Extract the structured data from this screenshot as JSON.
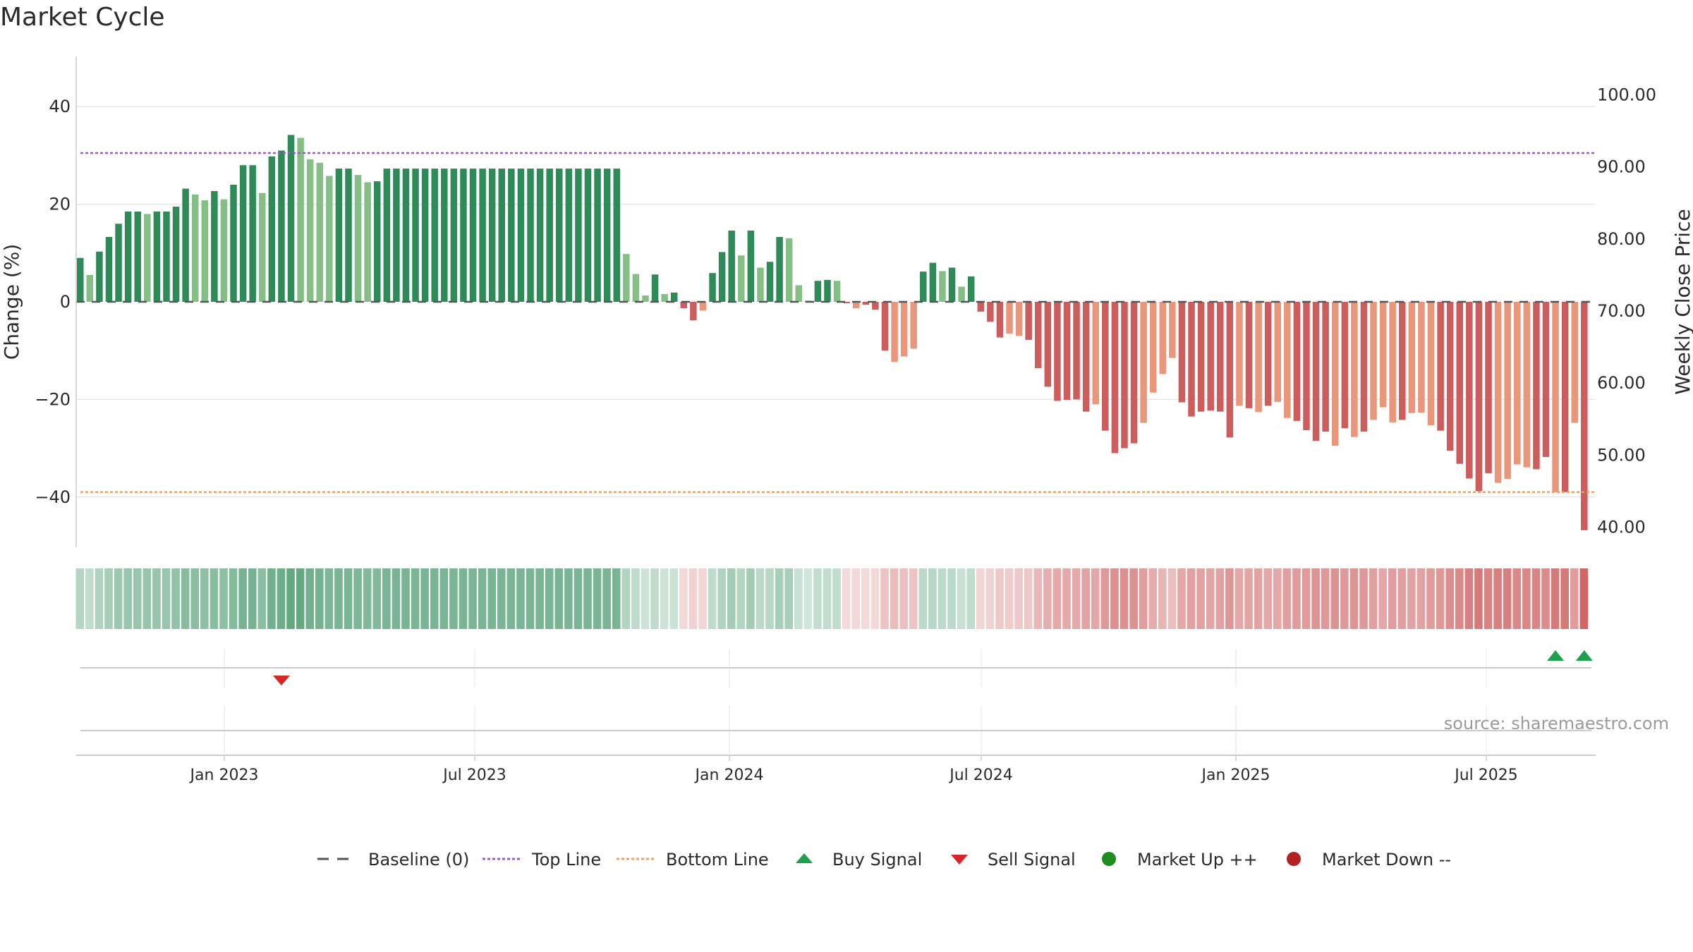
{
  "chart_data": {
    "type": "bar",
    "title": "Market Cycle",
    "ylabel": "Change (%)",
    "y2label": "Weekly Close Price",
    "ylim": [
      -50,
      50
    ],
    "y_ticks": [
      40,
      20,
      0,
      -20,
      -40
    ],
    "y_tick_labels": [
      "40",
      "20",
      "0",
      "−20",
      "−40"
    ],
    "y2lim": [
      38.5,
      108
    ],
    "y2_ticks": [
      100,
      90,
      80,
      70,
      60,
      50,
      40
    ],
    "y2_tick_labels": [
      "100.00",
      "90.00",
      "80.00",
      "70.00",
      "60.00",
      "50.00",
      "40.00"
    ],
    "top_line": 30.5,
    "bottom_line": -39,
    "x_ticks": [
      "Jan 2023",
      "Jul 2023",
      "Jan 2024",
      "Jul 2024",
      "Jan 2025",
      "Jul 2025"
    ],
    "grid": true,
    "legend_position": "bottom",
    "source": "source: sharemaestro.com",
    "values": [
      9,
      5.5,
      10.3,
      13.3,
      16,
      18.5,
      18.5,
      18,
      18.5,
      18.5,
      19.5,
      23.2,
      22,
      20.8,
      22.7,
      21,
      24,
      28,
      28,
      22.3,
      29.8,
      31,
      34.2,
      33.6,
      29.2,
      28.5,
      25.8,
      27.3,
      27.3,
      26,
      24.5,
      24.7,
      27.3,
      27.3,
      27.3,
      27.3,
      27.3,
      27.3,
      27.3,
      27.3,
      27.3,
      27.3,
      27.3,
      27.3,
      27.3,
      27.3,
      27.3,
      27.3,
      27.3,
      27.3,
      27.3,
      27.3,
      27.3,
      27.3,
      27.3,
      27.3,
      27.3,
      9.8,
      5.7,
      1.3,
      5.6,
      1.6,
      1.9,
      -1.3,
      -3.8,
      -1.8,
      5.9,
      10.2,
      14.6,
      9.5,
      14.6,
      7,
      8.2,
      13.3,
      13,
      3.4,
      0.2,
      4.3,
      4.5,
      4.3,
      -0.3,
      -1.3,
      -0.6,
      -1.6,
      -10,
      -12.3,
      -11.2,
      -9.6,
      6.2,
      8,
      6.3,
      7,
      3.1,
      5.2,
      -2,
      -4.1,
      -7.3,
      -6.5,
      -7,
      -7.8,
      -13.6,
      -17.4,
      -20.3,
      -20.1,
      -20,
      -22.5,
      -21,
      -26.4,
      -31,
      -30,
      -29,
      -24.8,
      -18.6,
      -14.8,
      -11.5,
      -20.6,
      -23.5,
      -22.5,
      -22.3,
      -22.5,
      -27.8,
      -21.3,
      -21.8,
      -22.6,
      -21.3,
      -20.5,
      -23.8,
      -24.4,
      -26.3,
      -28.5,
      -26.6,
      -29.5,
      -25.9,
      -27.7,
      -26.6,
      -24.2,
      -21.6,
      -24.7,
      -24.2,
      -22.8,
      -22.7,
      -25.3,
      -26.4,
      -30.5,
      -33.2,
      -36.2,
      -38.8,
      -35.1,
      -37.1,
      -36.3,
      -33.3,
      -33.9,
      -34.3,
      -31.8,
      -39,
      -39,
      -24.8,
      -46.8
    ],
    "shade": [
      0,
      1,
      0,
      0,
      0,
      0,
      0,
      1,
      0,
      0,
      0,
      0,
      1,
      1,
      0,
      1,
      0,
      0,
      0,
      1,
      0,
      0,
      0,
      1,
      1,
      1,
      1,
      0,
      0,
      1,
      1,
      0,
      0,
      0,
      0,
      0,
      0,
      0,
      0,
      0,
      0,
      0,
      0,
      0,
      0,
      0,
      0,
      0,
      0,
      0,
      0,
      0,
      0,
      0,
      0,
      0,
      0,
      1,
      1,
      1,
      0,
      1,
      0,
      0,
      0,
      1,
      0,
      0,
      0,
      1,
      0,
      1,
      0,
      0,
      1,
      1,
      0,
      0,
      0,
      1,
      0,
      1,
      0,
      0,
      0,
      1,
      1,
      1,
      0,
      0,
      1,
      0,
      1,
      0,
      0,
      0,
      0,
      1,
      1,
      0,
      0,
      0,
      0,
      0,
      0,
      0,
      1,
      0,
      0,
      0,
      0,
      1,
      1,
      1,
      1,
      0,
      0,
      0,
      0,
      0,
      0,
      1,
      0,
      1,
      0,
      1,
      1,
      0,
      0,
      0,
      0,
      1,
      0,
      1,
      0,
      1,
      1,
      1,
      0,
      1,
      1,
      1,
      0,
      0,
      0,
      0,
      0,
      0,
      1,
      1,
      1,
      1,
      0,
      0,
      1,
      0,
      1,
      0
    ],
    "sell_signals": [
      21
    ],
    "buy_signals": [
      154,
      157
    ],
    "colors": {
      "up_dark": "#2e8b57",
      "up_light": "#86bf86",
      "down_dark": "#cd5c5c",
      "down_light": "#e9967a",
      "top_line": "#9b59d0",
      "bottom_line": "#f0a060",
      "buy": "#1fa04a",
      "sell": "#d62728",
      "market_up": "#1e8c1e",
      "market_down": "#b22222",
      "baseline": "#555555"
    },
    "legend": [
      {
        "label": "Baseline (0)",
        "kind": "baseline"
      },
      {
        "label": "Top Line",
        "kind": "top"
      },
      {
        "label": "Bottom Line",
        "kind": "bottom"
      },
      {
        "label": "Buy Signal",
        "kind": "buy"
      },
      {
        "label": "Sell Signal",
        "kind": "sell"
      },
      {
        "label": "Market Up ++",
        "kind": "up"
      },
      {
        "label": "Market Down --",
        "kind": "down"
      }
    ]
  }
}
